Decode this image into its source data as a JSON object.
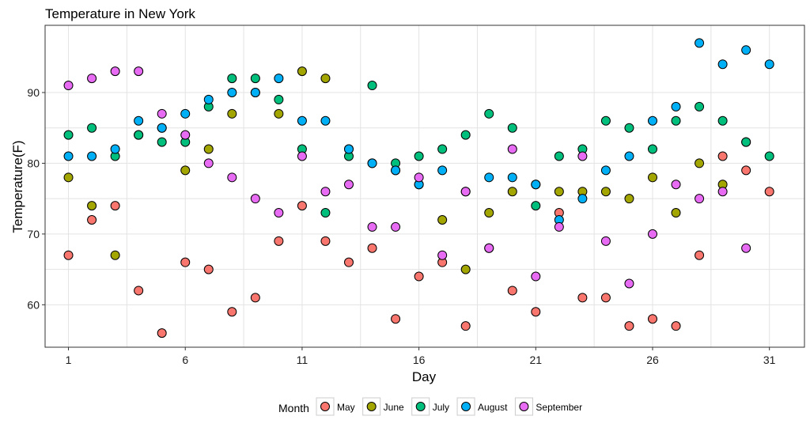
{
  "chart_data": {
    "type": "scatter",
    "title": "Temperature in New York",
    "xlabel": "Day",
    "ylabel": "Temperature(F)",
    "xlim": [
      0.0,
      32.5
    ],
    "ylim": [
      54.0,
      99.5
    ],
    "xticks": [
      1,
      6,
      11,
      16,
      21,
      26,
      31
    ],
    "yticks": [
      60,
      70,
      80,
      90
    ],
    "grid": true,
    "legend_title": "Month",
    "legend_position": "bottom",
    "x": [
      1,
      2,
      3,
      4,
      5,
      6,
      7,
      8,
      9,
      10,
      11,
      12,
      13,
      14,
      15,
      16,
      17,
      18,
      19,
      20,
      21,
      22,
      23,
      24,
      25,
      26,
      27,
      28,
      29,
      30,
      31
    ],
    "series": [
      {
        "name": "May",
        "color": "#F8766D",
        "values": [
          67,
          72,
          74,
          62,
          56,
          66,
          65,
          59,
          61,
          69,
          74,
          69,
          66,
          68,
          58,
          64,
          66,
          57,
          68,
          62,
          59,
          73,
          61,
          61,
          57,
          58,
          57,
          67,
          81,
          79,
          76
        ]
      },
      {
        "name": "June",
        "color": "#A3A500",
        "values": [
          78,
          74,
          67,
          84,
          85,
          79,
          82,
          87,
          90,
          87,
          93,
          92,
          82,
          80,
          79,
          77,
          72,
          65,
          73,
          76,
          77,
          76,
          76,
          76,
          75,
          78,
          73,
          80,
          77,
          83,
          null
        ]
      },
      {
        "name": "July",
        "color": "#00BF7D",
        "values": [
          84,
          85,
          81,
          84,
          83,
          83,
          88,
          92,
          92,
          89,
          82,
          73,
          81,
          91,
          80,
          81,
          82,
          84,
          87,
          85,
          74,
          81,
          82,
          86,
          85,
          82,
          86,
          88,
          86,
          83,
          81
        ]
      },
      {
        "name": "August",
        "color": "#00B0F6",
        "values": [
          81,
          81,
          82,
          86,
          85,
          87,
          89,
          90,
          90,
          92,
          86,
          86,
          82,
          80,
          79,
          77,
          79,
          76,
          78,
          78,
          77,
          72,
          75,
          79,
          81,
          86,
          88,
          97,
          94,
          96,
          94
        ]
      },
      {
        "name": "September",
        "color": "#E76BF3",
        "values": [
          91,
          92,
          93,
          93,
          87,
          84,
          80,
          78,
          75,
          73,
          81,
          76,
          77,
          71,
          71,
          78,
          67,
          76,
          68,
          82,
          64,
          71,
          81,
          69,
          63,
          70,
          77,
          75,
          76,
          68,
          null
        ]
      }
    ]
  }
}
